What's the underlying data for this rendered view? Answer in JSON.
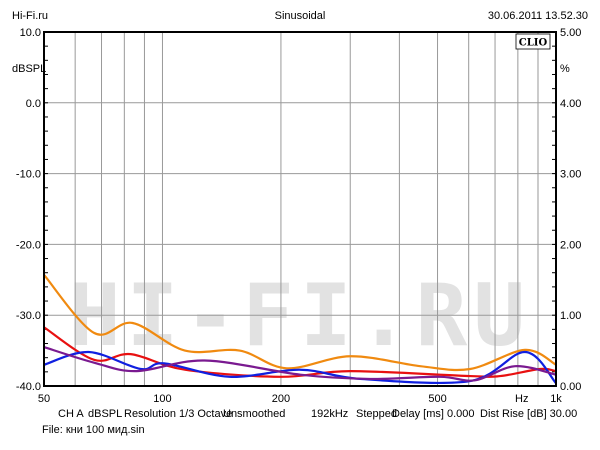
{
  "header": {
    "left": "Hi-Fi.ru",
    "center": "Sinusoidal",
    "right": "30.06.2011 13.52.30"
  },
  "logo": "CLIO",
  "watermark": "HI-FI.RU",
  "footer": {
    "settings": [
      "CH A",
      "dBSPL",
      "Resolution 1/3 Octave",
      "Unsmoothed",
      "192kHz",
      "Stepped",
      "Delay [ms] 0.000",
      "Dist Rise [dB] 30.00"
    ],
    "file": "File: кни 100 мид.sin"
  },
  "chart_data": {
    "type": "line",
    "title": "Sinusoidal",
    "xlabel": "Hz",
    "ylabel": "dBSPL",
    "y2label": "%",
    "xscale": "log",
    "xlim": [
      50,
      1000
    ],
    "ylim": [
      -40,
      10
    ],
    "y2lim": [
      0,
      5
    ],
    "grid": true,
    "x_ticks": [
      {
        "v": 50,
        "label": "50"
      },
      {
        "v": 100,
        "label": "100"
      },
      {
        "v": 200,
        "label": "200"
      },
      {
        "v": 500,
        "label": "500"
      },
      {
        "v": 1000,
        "label": "1k"
      }
    ],
    "x_grid": [
      60,
      70,
      80,
      90,
      100,
      200,
      300,
      400,
      500,
      600,
      700,
      800,
      900
    ],
    "y_ticks": [
      {
        "v": 10,
        "label": "10.0"
      },
      {
        "v": 0,
        "label": "0.0"
      },
      {
        "v": -10,
        "label": "-10.0"
      },
      {
        "v": -20,
        "label": "-20.0"
      },
      {
        "v": -30,
        "label": "-30.0"
      },
      {
        "v": -40,
        "label": "-40.0"
      }
    ],
    "y2_ticks": [
      "5.00",
      "4.00",
      "3.00",
      "2.00",
      "1.00",
      "0.00"
    ],
    "series": [
      {
        "name": "orange",
        "color": "#f08a10",
        "x": [
          50,
          67,
          84,
          114,
          157,
          207,
          300,
          452,
          605,
          834,
          1000
        ],
        "y": [
          -24.3,
          -32.5,
          -31.1,
          -35,
          -35,
          -37.5,
          -35.8,
          -37.2,
          -37.6,
          -34.9,
          -37
        ]
      },
      {
        "name": "red",
        "color": "#e81010",
        "x": [
          50,
          67,
          83,
          114,
          199,
          300,
          605,
          721,
          911,
          1000
        ],
        "y": [
          -31.7,
          -36.3,
          -35.5,
          -37.7,
          -38.7,
          -37.9,
          -38.6,
          -38.6,
          -37.6,
          -37.9
        ]
      },
      {
        "name": "blue",
        "color": "#1020e0",
        "x": [
          50,
          65,
          88,
          101,
          148,
          224,
          318,
          605,
          834,
          1000
        ],
        "y": [
          -37,
          -35.2,
          -37.6,
          -36.8,
          -38.7,
          -37.7,
          -39,
          -39.3,
          -35.2,
          -39.6
        ]
      },
      {
        "name": "purple",
        "color": "#7a1a90",
        "x": [
          50,
          67,
          86,
          128,
          224,
          337,
          507,
          622,
          787,
          1000
        ],
        "y": [
          -34.5,
          -36.7,
          -37.9,
          -36.4,
          -38.4,
          -39,
          -38.7,
          -39.2,
          -37.2,
          -38.4
        ]
      }
    ]
  }
}
